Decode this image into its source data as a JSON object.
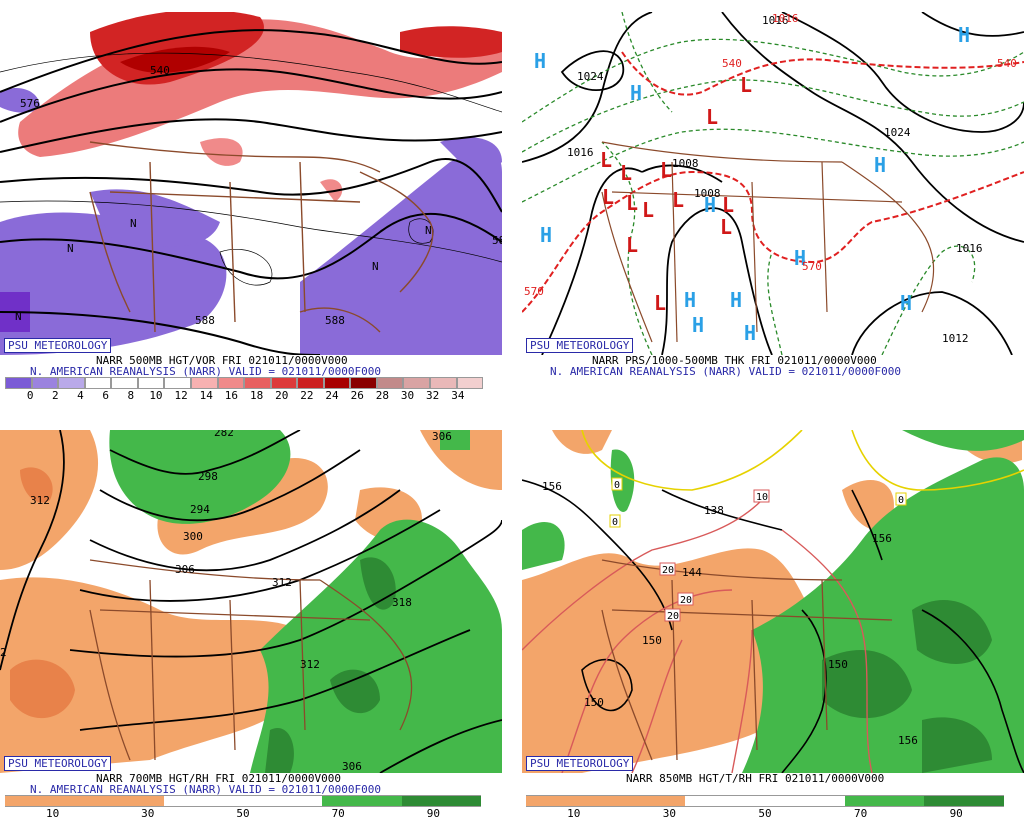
{
  "panels": [
    {
      "badge": "PSU METEOROLOGY",
      "caption1": "NARR 500MB HGT/VOR FRI 021011/0000V000",
      "caption2": "N. AMERICAN REANALYSIS (NARR) VALID = 021011/0000F000",
      "contour_labels": [
        "540",
        "588",
        "588",
        "576",
        "588",
        "N",
        "N",
        "N",
        "N",
        "N"
      ],
      "colorbar_ticks": [
        "0",
        "2",
        "4",
        "6",
        "8",
        "10",
        "12",
        "14",
        "16",
        "18",
        "20",
        "22",
        "24",
        "26",
        "28",
        "30",
        "32",
        "34"
      ],
      "colorbar_colors": [
        "#7b5bd6",
        "#9b83df",
        "#b9a9e9",
        "#ffffff",
        "#ffffff",
        "#ffffff",
        "#ffffff",
        "#f7b1b1",
        "#f08a8a",
        "#e86060",
        "#dd3a3a",
        "#cc2020",
        "#a80000",
        "#8a0000",
        "#c28a8a",
        "#d9a3a3",
        "#e9b8b8",
        "#f2cfcf"
      ]
    },
    {
      "badge": "PSU METEOROLOGY",
      "caption1": "NARR PRS/1000-500MB THK FRI 021011/0000V000",
      "caption2": "N. AMERICAN REANALYSIS (NARR) VALID = 021011/0000F000",
      "highs": [
        "H",
        "H",
        "H",
        "H",
        "H",
        "H",
        "H",
        "H",
        "H",
        "H",
        "H",
        "H"
      ],
      "lows": [
        "L",
        "L",
        "L",
        "L",
        "L",
        "L",
        "L",
        "L",
        "L",
        "L",
        "L",
        "L",
        "L"
      ],
      "contour_labels": [
        "1024",
        "1016",
        "1016",
        "1016",
        "1008",
        "1008",
        "540",
        "540",
        "570",
        "570",
        "1016",
        "1024",
        "1012"
      ]
    },
    {
      "badge": "PSU METEOROLOGY",
      "caption1": "NARR 700MB HGT/RH FRI 021011/0000V000",
      "caption2": "N. AMERICAN REANALYSIS (NARR) VALID = 021011/0000F000",
      "contour_labels": [
        "312",
        "306",
        "300",
        "294",
        "298",
        "306",
        "312",
        "312",
        "318",
        "306",
        "282",
        "2"
      ],
      "colorbar_ticks": [
        "10",
        "30",
        "50",
        "70",
        "90"
      ]
    },
    {
      "badge": "PSU METEOROLOGY",
      "caption1": "NARR 850MB HGT/T/RH FRI 021011/0000V000",
      "contour_labels": [
        "156",
        "138",
        "144",
        "150",
        "150",
        "150",
        "156",
        "156"
      ],
      "temp_labels": [
        "0",
        "0",
        "10",
        "20",
        "20",
        "20",
        "0"
      ],
      "colorbar_ticks": [
        "10",
        "30",
        "50",
        "70",
        "90"
      ]
    }
  ]
}
